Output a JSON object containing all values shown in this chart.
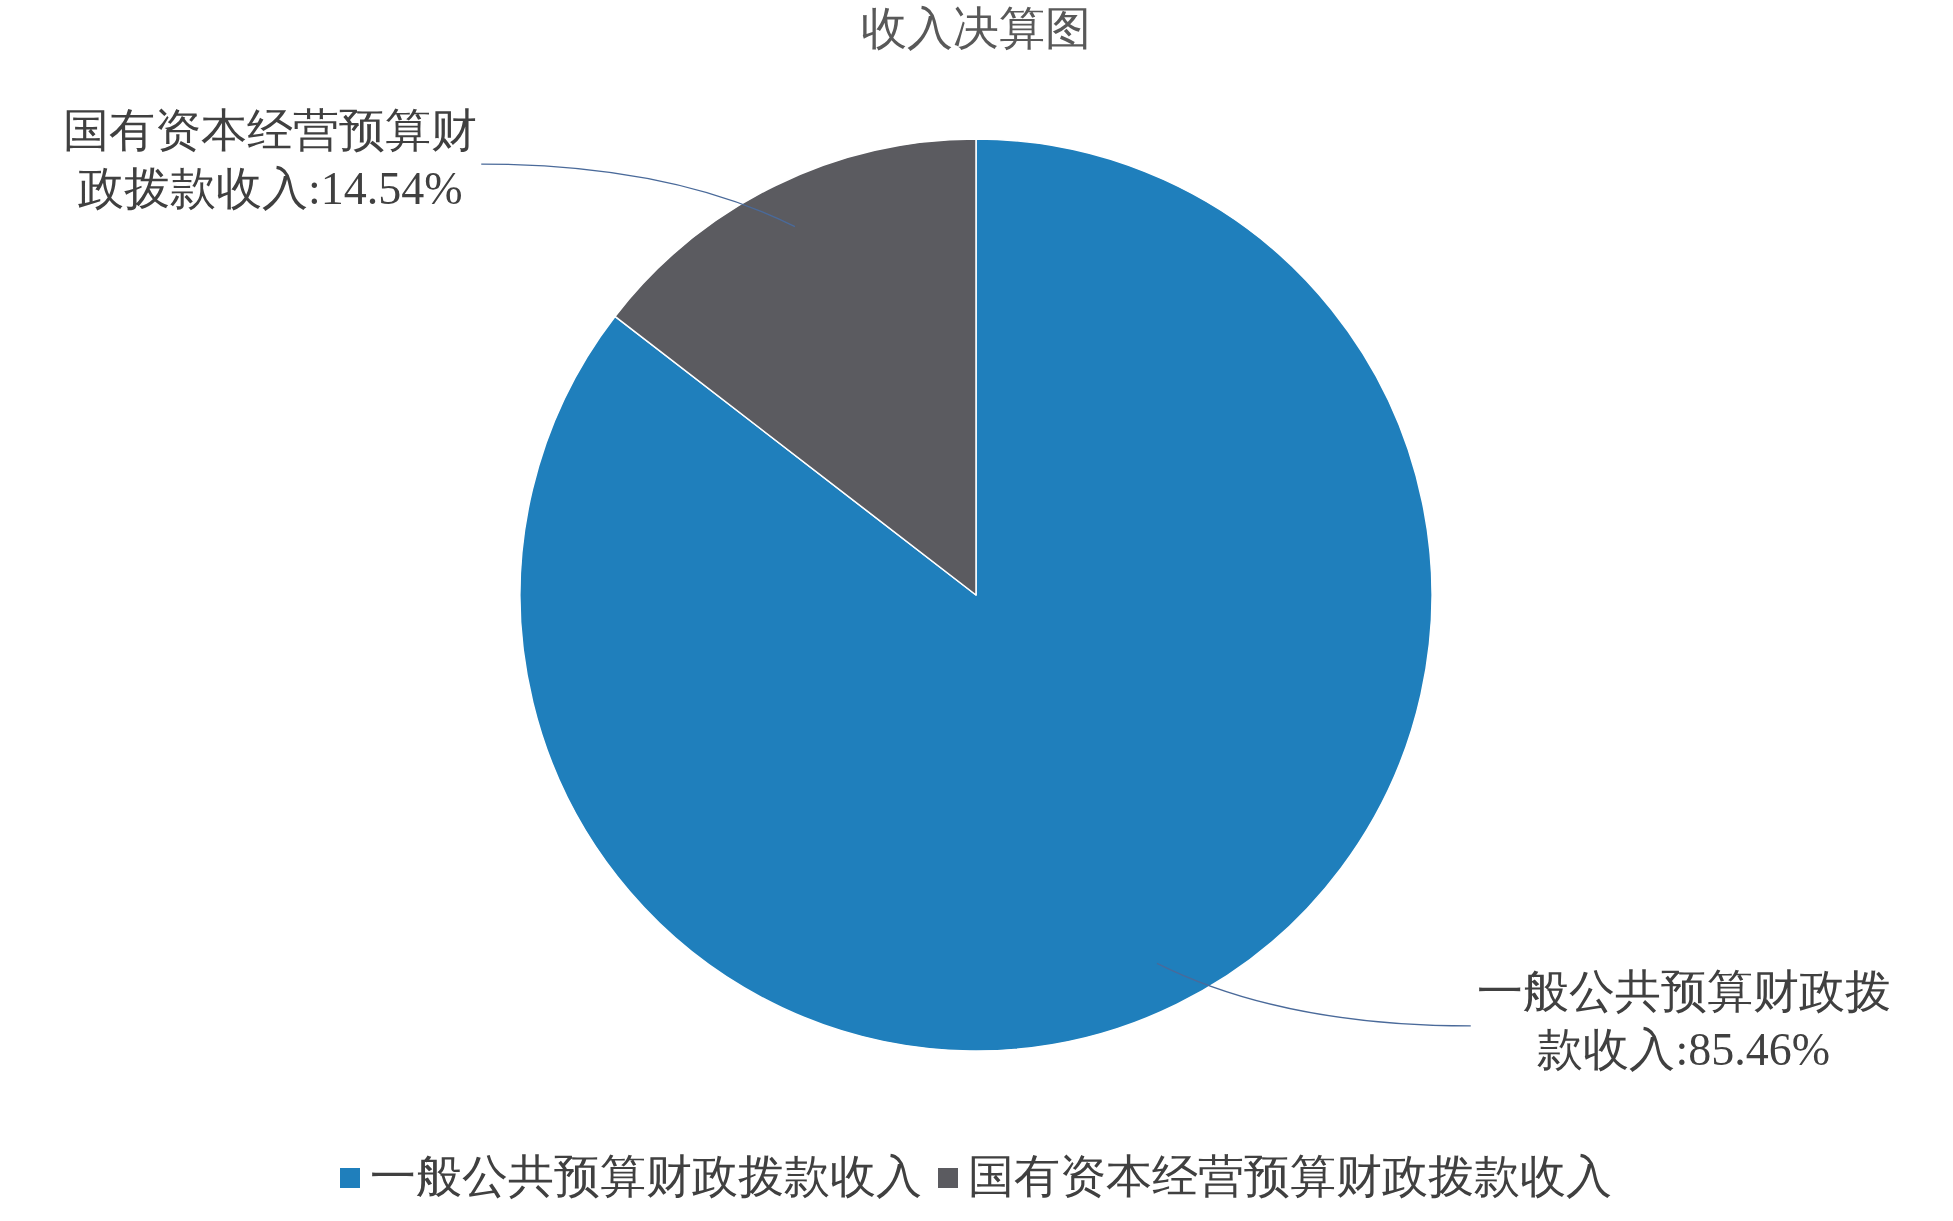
{
  "chart_data": {
    "type": "pie",
    "title": "收入决算图",
    "categories": [
      "一般公共预算财政拨款收入",
      "国有资本经营预算财政拨款收入"
    ],
    "values": [
      85.46,
      14.54
    ],
    "colors": [
      "#1f7fbc",
      "#5b5b60"
    ],
    "value_labels": [
      "一般公共预算财政拨款收入:85.46%",
      "国有资本经营预算财政拨款收入:14.54%"
    ],
    "legend": "bottom"
  }
}
